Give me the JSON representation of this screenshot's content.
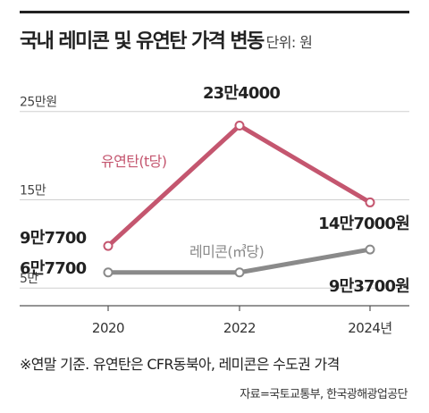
{
  "header": {
    "title": "국내 레미콘 및 유연탄 가격 변동",
    "unit": "단위: 원"
  },
  "chart_data": {
    "type": "line",
    "x_tick_labels": [
      "2020",
      "2022",
      "2024년"
    ],
    "x": [
      2020,
      2022,
      2024
    ],
    "y_tick_labels": [
      "25만원",
      "15만",
      "5만"
    ],
    "y_ticks": [
      250000,
      150000,
      50000
    ],
    "ylim": [
      30000,
      275000
    ],
    "grid": true,
    "series": [
      {
        "name": "유연탄(t당)",
        "color": "#c4566f",
        "values": [
          97700,
          234000,
          147000
        ],
        "labels": [
          "9만7700",
          "23만4000",
          "14만7000원"
        ]
      },
      {
        "name": "레미콘(㎥당)",
        "color": "#8a8a8a",
        "values": [
          67700,
          67700,
          93700
        ],
        "labels": [
          "6만7700",
          "",
          "9만3700원"
        ]
      }
    ]
  },
  "footnote": "※연말 기준. 유연탄은 CFR동북아, 레미콘은 수도권 가격",
  "source": "자료=국토교통부, 한국광해광업공단"
}
